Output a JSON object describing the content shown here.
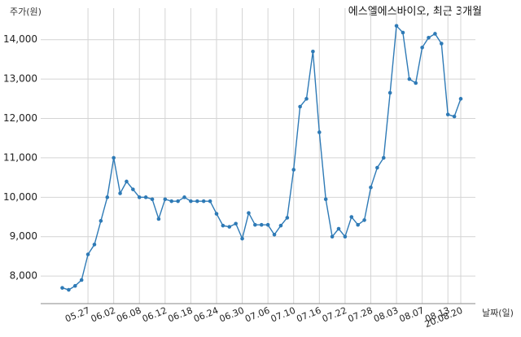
{
  "chart_data": {
    "type": "line",
    "title": "에스엘에스바이오, 최근 3개월",
    "ylabel": "주가(원)",
    "xlabel": "날짜(일)",
    "ylim": [
      7300,
      14800
    ],
    "y_ticks": [
      8000,
      9000,
      10000,
      11000,
      12000,
      13000,
      14000
    ],
    "y_tick_labels": [
      "8,000",
      "9,000",
      "10,000",
      "11,000",
      "12,000",
      "13,000",
      "14,000"
    ],
    "x_tick_labels": [
      "05.27",
      "06.02",
      "06.08",
      "06.12",
      "06.18",
      "06.24",
      "06.30",
      "07.06",
      "07.10",
      "07.16",
      "07.22",
      "07.28",
      "08.03",
      "08.07",
      "08.13",
      "20.08.20"
    ],
    "grid": true,
    "values": [
      7700,
      7650,
      7750,
      7900,
      8550,
      8800,
      9400,
      10000,
      11000,
      10100,
      10400,
      10200,
      10000,
      10000,
      9950,
      9450,
      9950,
      9900,
      9900,
      10000,
      9900,
      9900,
      9900,
      9900,
      9580,
      9280,
      9250,
      9330,
      8950,
      9600,
      9300,
      9300,
      9300,
      9050,
      9280,
      9480,
      10700,
      12300,
      12500,
      13700,
      11650,
      9950,
      9000,
      9200,
      9000,
      9500,
      9300,
      9420,
      10250,
      10750,
      11000,
      12650,
      14350,
      14180,
      13000,
      12900,
      13800,
      14050,
      14150,
      13900,
      12100,
      12050,
      12500
    ],
    "colors": {
      "line": "#2e7ab6",
      "grid": "#d4d4d4"
    }
  }
}
